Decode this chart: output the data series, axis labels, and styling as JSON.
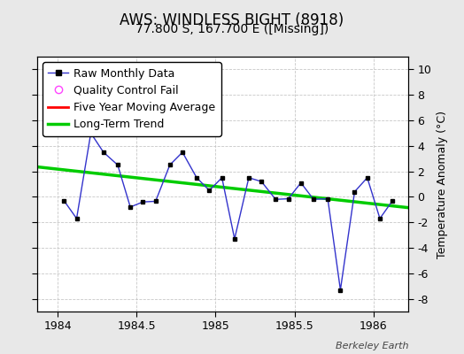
{
  "title": "AWS: WINDLESS BIGHT (8918)",
  "subtitle": "77.800 S, 167.700 E ([Missing])",
  "ylabel": "Temperature Anomaly (°C)",
  "watermark": "Berkeley Earth",
  "xlim": [
    1983.87,
    1986.22
  ],
  "ylim": [
    -9,
    11
  ],
  "yticks": [
    -8,
    -6,
    -4,
    -2,
    0,
    2,
    4,
    6,
    8,
    10
  ],
  "xticks": [
    1984,
    1984.5,
    1985,
    1985.5,
    1986
  ],
  "raw_x": [
    1984.04,
    1984.12,
    1984.21,
    1984.29,
    1984.38,
    1984.46,
    1984.54,
    1984.62,
    1984.71,
    1984.79,
    1984.88,
    1984.96,
    1985.04,
    1985.12,
    1985.21,
    1985.29,
    1985.38,
    1985.46,
    1985.54,
    1985.62,
    1985.71,
    1985.79,
    1985.88,
    1985.96,
    1986.04,
    1986.12
  ],
  "raw_y": [
    -0.3,
    -1.7,
    5.0,
    3.5,
    2.5,
    -0.8,
    -0.4,
    -0.35,
    2.5,
    3.5,
    1.5,
    0.5,
    1.5,
    -3.3,
    1.5,
    1.2,
    -0.2,
    -0.15,
    1.1,
    -0.2,
    -0.15,
    -7.3,
    0.4,
    1.5,
    -1.7,
    -0.3
  ],
  "trend_x": [
    1983.87,
    1986.22
  ],
  "trend_y": [
    2.35,
    -0.85
  ],
  "background_color": "#e8e8e8",
  "plot_bg_color": "#ffffff",
  "raw_line_color": "#3333cc",
  "raw_marker_color": "#000000",
  "trend_color": "#00cc00",
  "mavg_color": "#ff0000",
  "qc_color": "#ff44ff",
  "title_fontsize": 12,
  "subtitle_fontsize": 10,
  "legend_fontsize": 9,
  "tick_fontsize": 9,
  "ylabel_fontsize": 9
}
